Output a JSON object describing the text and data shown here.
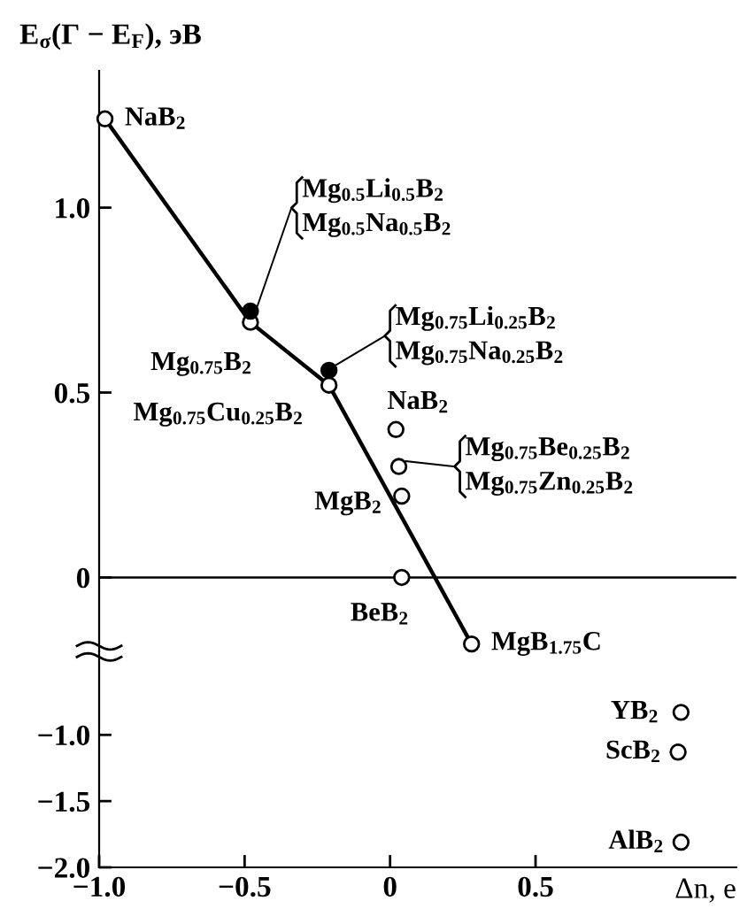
{
  "chart_data": [
    {
      "type": "scatter",
      "ylabel": "E$_{σ}$(Γ − E$_{F}$), эВ",
      "xlim": [
        -1.0,
        1.19
      ],
      "ylim": [
        -0.2,
        1.37
      ],
      "yticks": [
        0,
        0.5,
        {
          "value": 1.0,
          "label": "1.0"
        }
      ],
      "tick_labels": "y",
      "marker": "circle",
      "grid": false,
      "legend": false,
      "series": [
        {
          "type": "line",
          "color": "#000000",
          "marker": "none",
          "line_style": "solid",
          "x": [
            -0.98,
            -0.48,
            -0.21,
            0.28
          ],
          "values": [
            1.24,
            0.69,
            0.52,
            -0.18
          ]
        },
        {
          "color": "#ffffff",
          "x": [
            -0.98,
            -0.48,
            -0.21,
            0.02,
            0.03,
            0.04,
            0.04,
            0.28
          ],
          "values": [
            1.24,
            0.69,
            0.52,
            0.4,
            0.3,
            0.22,
            0,
            -0.18
          ]
        },
        {
          "color": "#000000",
          "x": [
            -0.48,
            -0.21
          ],
          "values": [
            0.72,
            0.56
          ]
        }
      ],
      "ref_lines": [
        {
          "axis": "y",
          "value": 0,
          "color": "#000000"
        }
      ],
      "annotations": [
        {
          "text": "NaB$_{2}$",
          "x": -0.98,
          "y": 1.24
        },
        {
          "text": "Mg$_{0.5}$Li$_{0.5}$B$_{2}$",
          "x": -0.48,
          "y": 0.72
        },
        {
          "text": "Mg$_{0.5}$Na$_{0.5}$B$_{2}$",
          "x": -0.48,
          "y": 0.72
        },
        {
          "text": "Mg$_{0.75}$B$_{2}$",
          "x": -0.48,
          "y": 0.69
        },
        {
          "text": "Mg$_{0.75}$Li$_{0.25}$B$_{2}$",
          "x": -0.21,
          "y": 0.56
        },
        {
          "text": "Mg$_{0.75}$Na$_{0.25}$B$_{2}$",
          "x": -0.21,
          "y": 0.56
        },
        {
          "text": "Mg$_{0.75}$Cu$_{0.25}$B$_{2}$",
          "x": -0.21,
          "y": 0.52
        },
        {
          "text": "NaB$_{2}$",
          "x": 0.02,
          "y": 0.4
        },
        {
          "text": "Mg$_{0.75}$Be$_{0.25}$B$_{2}$",
          "x": 0.03,
          "y": 0.3
        },
        {
          "text": "Mg$_{0.75}$Zn$_{0.25}$B$_{2}$",
          "x": 0.03,
          "y": 0.3
        },
        {
          "text": "MgB$_{2}$",
          "x": 0.04,
          "y": 0.22
        },
        {
          "text": "BeB$_{2}$",
          "x": 0.04,
          "y": 0
        },
        {
          "text": "MgB$_{1.75}$C",
          "x": 0.28,
          "y": -0.18
        }
      ]
    },
    {
      "type": "scatter",
      "xlabel": "Δn, e",
      "xlim": [
        -1.0,
        1.19
      ],
      "ylim": [
        -2.0,
        -0.37
      ],
      "xticks": [
        {
          "value": -1.0,
          "label": "−1.0"
        },
        {
          "value": -0.5,
          "label": "−0.5"
        },
        0,
        0.5
      ],
      "yticks": [
        {
          "value": -2.0,
          "label": "−2.0"
        },
        {
          "value": -1.5,
          "label": "−1.5"
        },
        {
          "value": -1.0,
          "label": "−1.0"
        }
      ],
      "marker": "circle",
      "grid": false,
      "legend": false,
      "series": [
        {
          "color": "#ffffff",
          "x": [
            1.0,
            0.99,
            1.0
          ],
          "values": [
            -0.83,
            -1.13,
            -1.81
          ]
        }
      ],
      "annotations": [
        {
          "text": "YB$_{2}$",
          "x": 1.0,
          "y": -0.83
        },
        {
          "text": "ScB$_{2}$",
          "x": 0.99,
          "y": -1.13
        },
        {
          "text": "AlB$_{2}$",
          "x": 1.0,
          "y": -1.81
        }
      ]
    }
  ]
}
